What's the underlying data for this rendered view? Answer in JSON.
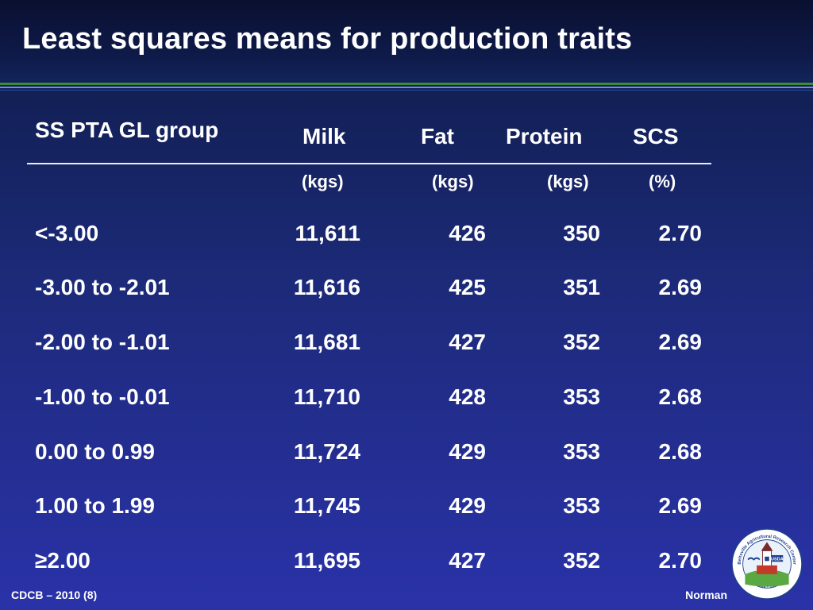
{
  "slide": {
    "title": "Least squares means for production traits",
    "footer_left": "CDCB – 2010 (8)",
    "footer_right": "Norman"
  },
  "table": {
    "group_header": "SS PTA GL group",
    "columns": [
      {
        "label": "Milk",
        "unit": "(kgs)"
      },
      {
        "label": "Fat",
        "unit": "(kgs)"
      },
      {
        "label": "Protein",
        "unit": "(kgs)"
      },
      {
        "label": "SCS",
        "unit": "(%)"
      }
    ],
    "rows": [
      {
        "group": "<-3.00",
        "milk": "11,611",
        "fat": "426",
        "protein": "350",
        "scs": "2.70"
      },
      {
        "group": "-3.00 to -2.01",
        "milk": "11,616",
        "fat": "425",
        "protein": "351",
        "scs": "2.69"
      },
      {
        "group": "-2.00 to -1.01",
        "milk": "11,681",
        "fat": "427",
        "protein": "352",
        "scs": "2.69"
      },
      {
        "group": "-1.00 to -0.01",
        "milk": "11,710",
        "fat": "428",
        "protein": "353",
        "scs": "2.68"
      },
      {
        "group": "0.00 to 0.99",
        "milk": "11,724",
        "fat": "429",
        "protein": "353",
        "scs": "2.68"
      },
      {
        "group": "1.00 to 1.99",
        "milk": "11,745",
        "fat": "429",
        "protein": "353",
        "scs": "2.69"
      },
      {
        "group": "≥2.00",
        "milk": "11,695",
        "fat": "427",
        "protein": "352",
        "scs": "2.70"
      }
    ]
  },
  "logo": {
    "ring_text_top": "Beltsville Agricultural Research Center",
    "ring_text_bottom": "Centennial • 1910-2010",
    "badge_text": "USDA",
    "icon": "barc-centennial-seal-icon"
  },
  "colors": {
    "background_top": "#0d1a44",
    "background_bottom": "#2a32a8",
    "rule_green": "#3f8a3a",
    "rule_blue": "#6f8fd6"
  }
}
